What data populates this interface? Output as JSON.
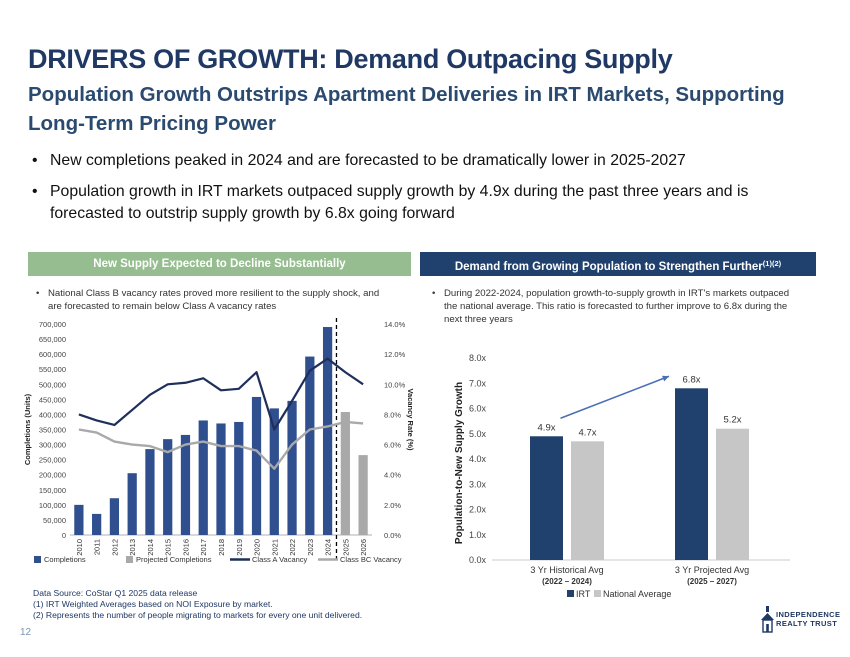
{
  "title": "DRIVERS OF GROWTH: Demand Outpacing Supply",
  "subtitle": "Population Growth Outstrips Apartment Deliveries in IRT Markets, Supporting Long-Term Pricing Power",
  "bullets": [
    "New completions peaked in 2024 and are forecasted to be dramatically lower in 2025-2027",
    "Population growth in IRT markets outpaced supply growth by 4.9x during the past three years and is forecasted to outstrip supply growth by 6.8x going forward"
  ],
  "left_panel": {
    "header": "New Supply Expected to Decline Substantially",
    "note": "National Class B vacancy rates proved more resilient to the supply shock, and are forecasted to remain below Class A vacancy rates"
  },
  "right_panel": {
    "header": "Demand from Growing Population to Strengthen Further",
    "header_sup": "(1)(2)",
    "note": "During 2022-2024, population growth-to-supply growth in IRT's markets outpaced the national average. This ratio is forecasted to further improve to 6.8x during the next three years"
  },
  "footnotes": [
    "Data Source: CoStar Q1 2025 data release",
    "(1)  IRT Weighted Averages based on NOI Exposure by market.",
    "(2)  Represents the number of people migrating to markets for every one unit delivered."
  ],
  "page_number": "12",
  "logo": {
    "line1": "INDEPENDENCE",
    "line2": "REALTY TRUST"
  },
  "chart_data": [
    {
      "type": "bar+line",
      "title": "New Supply Expected to Decline Substantially",
      "categories": [
        "2010",
        "2011",
        "2012",
        "2013",
        "2014",
        "2015",
        "2016",
        "2017",
        "2018",
        "2019",
        "2020",
        "2021",
        "2022",
        "2023",
        "2024",
        "2025",
        "2026"
      ],
      "ylabel": "Completions (Units)",
      "y2label": "Vacancy Rate (%)",
      "ylim": [
        0,
        700000
      ],
      "y2lim": [
        0,
        14
      ],
      "yticks": [
        "0",
        "50,000",
        "100,000",
        "150,000",
        "200,000",
        "250,000",
        "300,000",
        "350,000",
        "400,000",
        "450,000",
        "500,000",
        "550,000",
        "600,000",
        "650,000",
        "700,000"
      ],
      "y2ticks": [
        "0.0%",
        "2.0%",
        "4.0%",
        "6.0%",
        "8.0%",
        "10.0%",
        "12.0%",
        "14.0%"
      ],
      "series": [
        {
          "name": "Completions",
          "kind": "bar",
          "color": "#2f4f8f",
          "values": [
            100000,
            70000,
            122000,
            205000,
            285000,
            318000,
            332000,
            380000,
            370000,
            375000,
            458000,
            420000,
            445000,
            592000,
            690000,
            null,
            null
          ]
        },
        {
          "name": "Projected Completions",
          "kind": "bar",
          "color": "#a9a9a9",
          "values": [
            null,
            null,
            null,
            null,
            null,
            null,
            null,
            null,
            null,
            null,
            null,
            null,
            null,
            null,
            null,
            408000,
            265000
          ]
        },
        {
          "name": "Class A Vacancy",
          "kind": "line",
          "color": "#1f2f5c",
          "values": [
            8.0,
            7.6,
            7.3,
            8.3,
            9.3,
            10.0,
            10.1,
            10.4,
            9.6,
            9.7,
            10.8,
            7.0,
            8.9,
            10.9,
            11.7,
            10.8,
            10.0
          ]
        },
        {
          "name": "Class BC Vacancy",
          "kind": "line",
          "color": "#a9a9a9",
          "values": [
            7.0,
            6.8,
            6.2,
            6.0,
            5.9,
            5.5,
            6.0,
            6.2,
            5.9,
            5.9,
            5.6,
            4.4,
            6.0,
            7.0,
            7.2,
            7.5,
            7.4
          ]
        }
      ],
      "legend": [
        "Completions",
        "Projected Completions",
        "Class A Vacancy",
        "Class BC Vacancy"
      ],
      "legend_position": "bottom"
    },
    {
      "type": "bar",
      "title": "Demand from Growing Population to Strengthen Further",
      "categories": [
        "3 Yr Historical Avg",
        "3 Yr Projected Avg"
      ],
      "category_sublabels": [
        "(2022 – 2024)",
        "(2025 – 2027)"
      ],
      "ylabel": "Population-to-New Supply Growth",
      "ylim": [
        0,
        8
      ],
      "yticks": [
        "0.0x",
        "1.0x",
        "2.0x",
        "3.0x",
        "4.0x",
        "5.0x",
        "6.0x",
        "7.0x",
        "8.0x"
      ],
      "series": [
        {
          "name": "IRT",
          "color": "#20416e",
          "values": [
            4.9,
            6.8
          ],
          "labels": [
            "4.9x",
            "6.8x"
          ]
        },
        {
          "name": "National Average",
          "color": "#c6c6c6",
          "values": [
            4.7,
            5.2
          ],
          "labels": [
            "4.7x",
            "5.2x"
          ]
        }
      ],
      "annotation": "arrow from 4.9x to 6.8x",
      "legend_position": "bottom"
    }
  ]
}
